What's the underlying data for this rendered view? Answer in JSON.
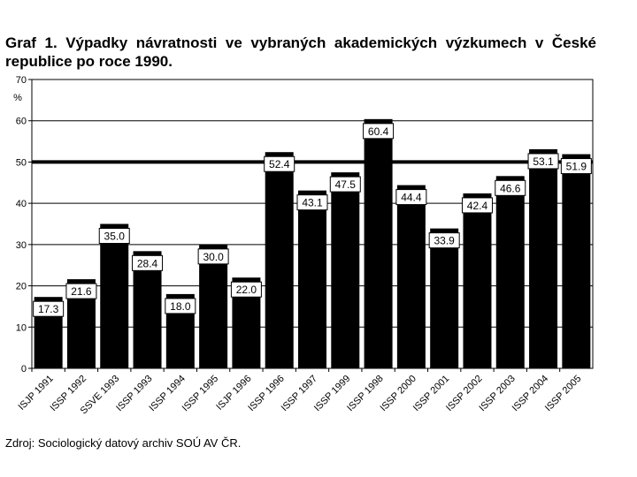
{
  "title": "Graf 1. Výpadky návratnosti ve vybraných akademických výzkumech v České republice po roce 1990.",
  "source": "Zdroj: Sociologický datový archiv SOÚ AV ČR.",
  "chart_data": {
    "type": "bar",
    "title": "Graf 1. Výpadky návratnosti ve vybraných akademických výzkumech v České republice po roce 1990.",
    "ylabel": "%",
    "xlabel": "",
    "ylim": [
      0,
      70
    ],
    "yticks": [
      0,
      10,
      20,
      30,
      40,
      50,
      60,
      70
    ],
    "grid": true,
    "reference_line": 50,
    "categories": [
      "ISJP 1991",
      "ISSP 1992",
      "SSVE 1993",
      "ISSP 1993",
      "ISSP 1994",
      "ISSP 1995",
      "ISJP 1996",
      "ISSP 1996",
      "ISSP 1997",
      "ISSP 1999",
      "ISSP 1998",
      "ISSP 2000",
      "ISSP 2001",
      "ISSP 2002",
      "ISSP 2003",
      "ISSP 2004",
      "ISSP 2005"
    ],
    "values": [
      17.3,
      21.6,
      35.0,
      28.4,
      18.0,
      30.0,
      22.0,
      52.4,
      43.1,
      47.5,
      60.4,
      44.4,
      33.9,
      42.4,
      46.6,
      53.1,
      51.9
    ],
    "labels": [
      "17.3",
      "21.6",
      "35.0",
      "28.4",
      "18.0",
      "30.0",
      "22.0",
      "52.4",
      "43.1",
      "47.5",
      "60.4",
      "44.4",
      "33.9",
      "42.4",
      "46.6",
      "53.1",
      "51.9"
    ],
    "bar_color": "#000000"
  }
}
